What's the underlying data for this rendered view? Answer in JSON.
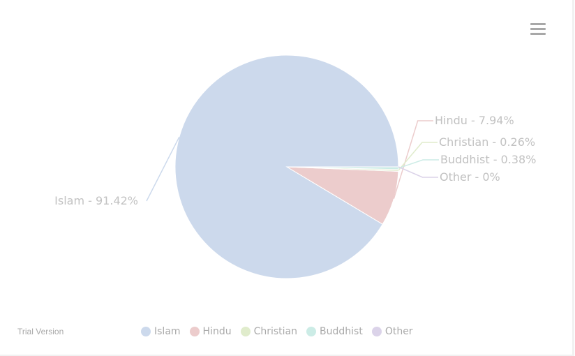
{
  "chart_data": {
    "type": "pie",
    "title": "",
    "slices": [
      {
        "name": "Islam",
        "value": 91.42,
        "label": "Islam - 91.42%",
        "color": "#ccd9ec"
      },
      {
        "name": "Hindu",
        "value": 7.94,
        "label": "Hindu - 7.94%",
        "color": "#eccccc"
      },
      {
        "name": "Christian",
        "value": 0.26,
        "label": "Christian - 0.26%",
        "color": "#e0eccc"
      },
      {
        "name": "Buddhist",
        "value": 0.38,
        "label": "Buddhist - 0.38%",
        "color": "#ccece6"
      },
      {
        "name": "Other",
        "value": 0,
        "label": "Other - 0%",
        "color": "#dbd3e9"
      }
    ],
    "legend_position": "bottom-center"
  },
  "legend": {
    "items": [
      {
        "label": "Islam",
        "color": "#ccd9ec"
      },
      {
        "label": "Hindu",
        "color": "#eccccc"
      },
      {
        "label": "Christian",
        "color": "#e0eccc"
      },
      {
        "label": "Buddhist",
        "color": "#ccece6"
      },
      {
        "label": "Other",
        "color": "#dbd3e9"
      }
    ]
  },
  "watermark": {
    "text": "Trial Version"
  },
  "toolbar": {
    "menu_icon": "hamburger-menu-icon"
  }
}
